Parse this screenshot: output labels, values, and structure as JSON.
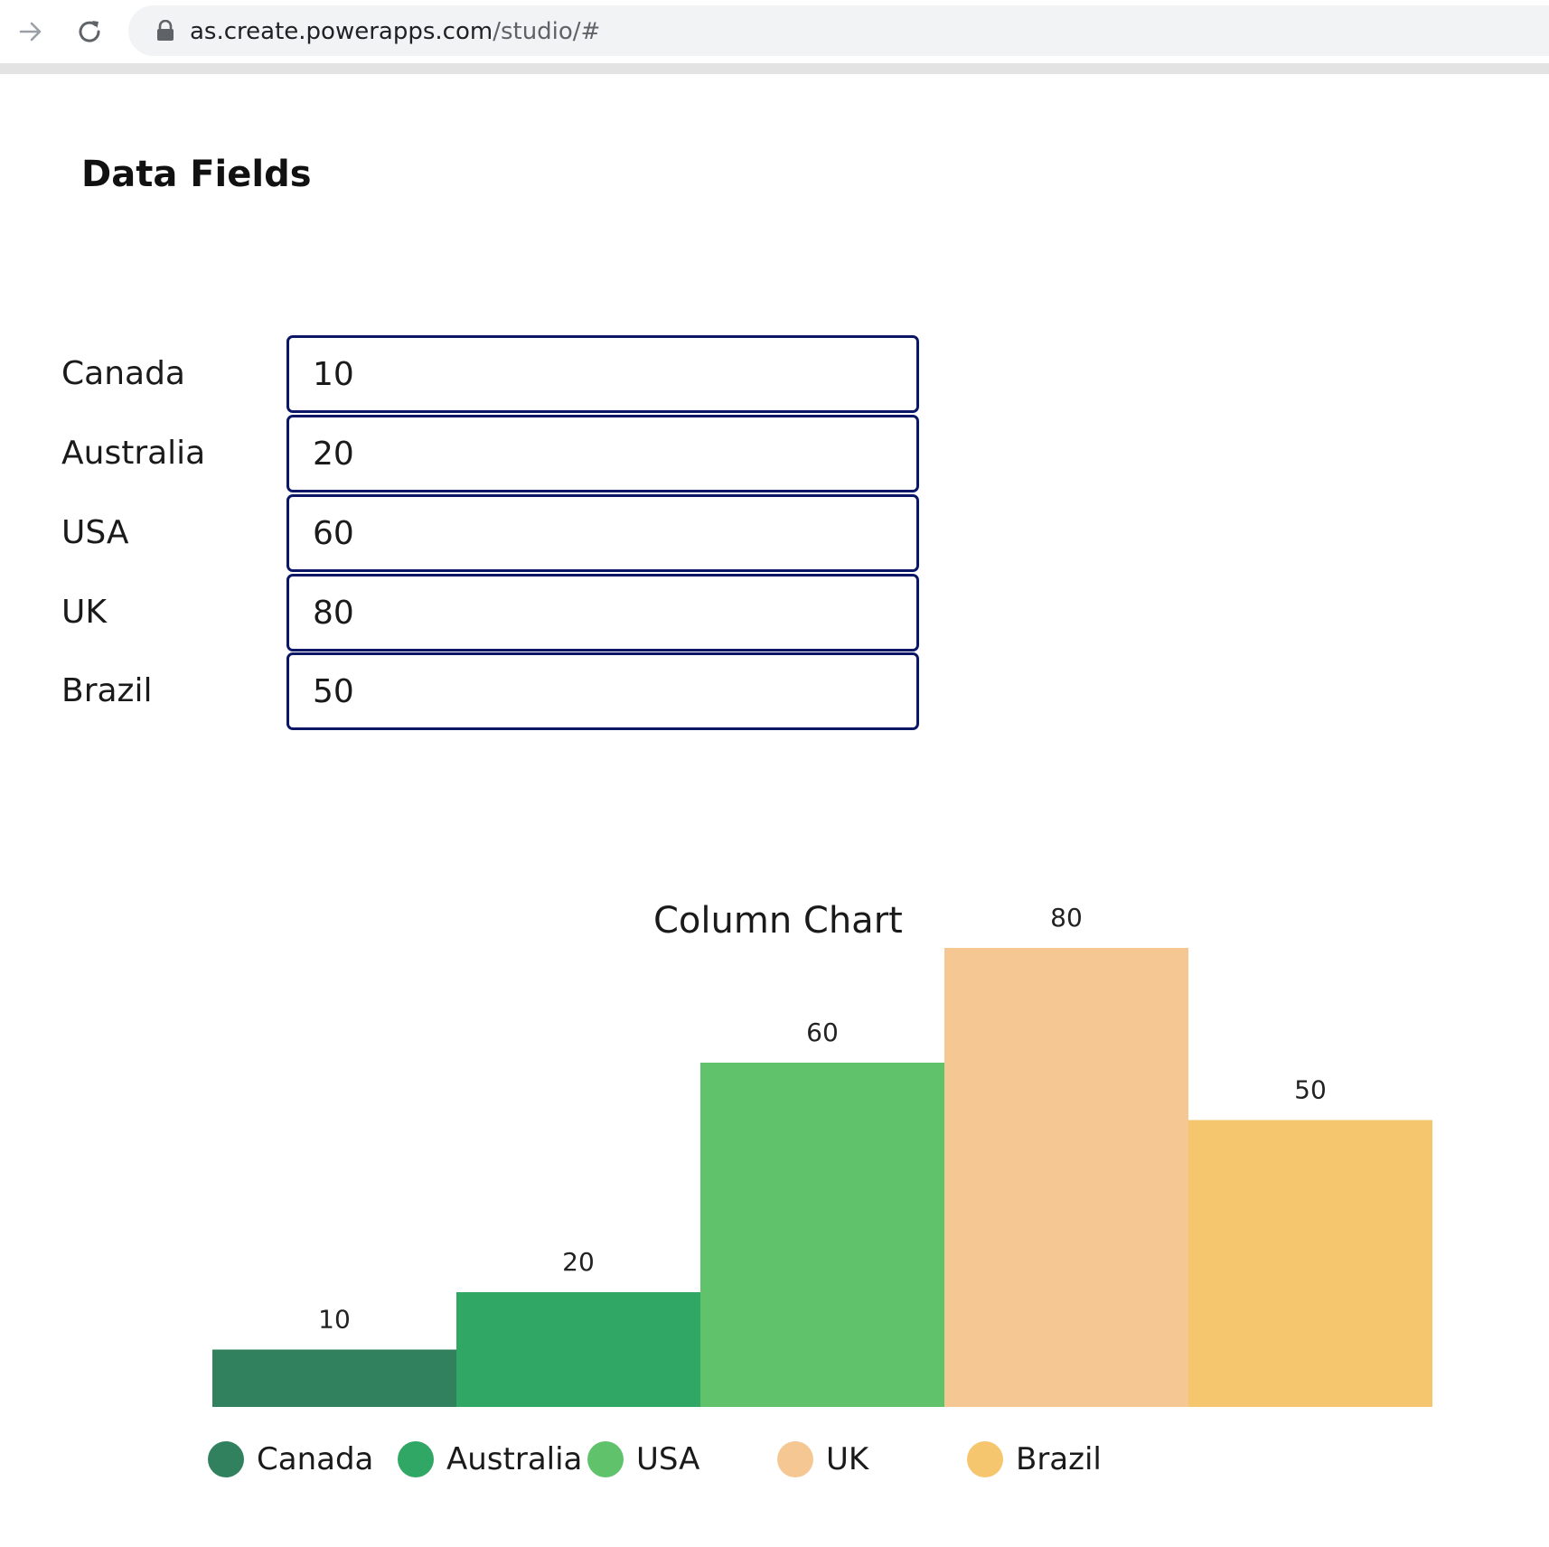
{
  "browser": {
    "url_host": "as.create.powerapps.com",
    "url_path": "/studio/#"
  },
  "form": {
    "title": "Data Fields",
    "fields": [
      {
        "label": "Canada",
        "value": "10"
      },
      {
        "label": "Australia",
        "value": "20"
      },
      {
        "label": "USA",
        "value": "60"
      },
      {
        "label": "UK",
        "value": "80"
      },
      {
        "label": "Brazil",
        "value": "50"
      }
    ]
  },
  "chart_data": {
    "type": "bar",
    "title": "Column Chart",
    "categories": [
      "Canada",
      "Australia",
      "USA",
      "UK",
      "Brazil"
    ],
    "values": [
      10,
      20,
      60,
      80,
      50
    ],
    "colors": [
      "#31815f",
      "#31a765",
      "#60c36c",
      "#f5c792",
      "#f6c66f"
    ],
    "data_labels": true,
    "legend_placement": "bottom",
    "grid": false,
    "ylim": [
      0,
      80
    ]
  }
}
